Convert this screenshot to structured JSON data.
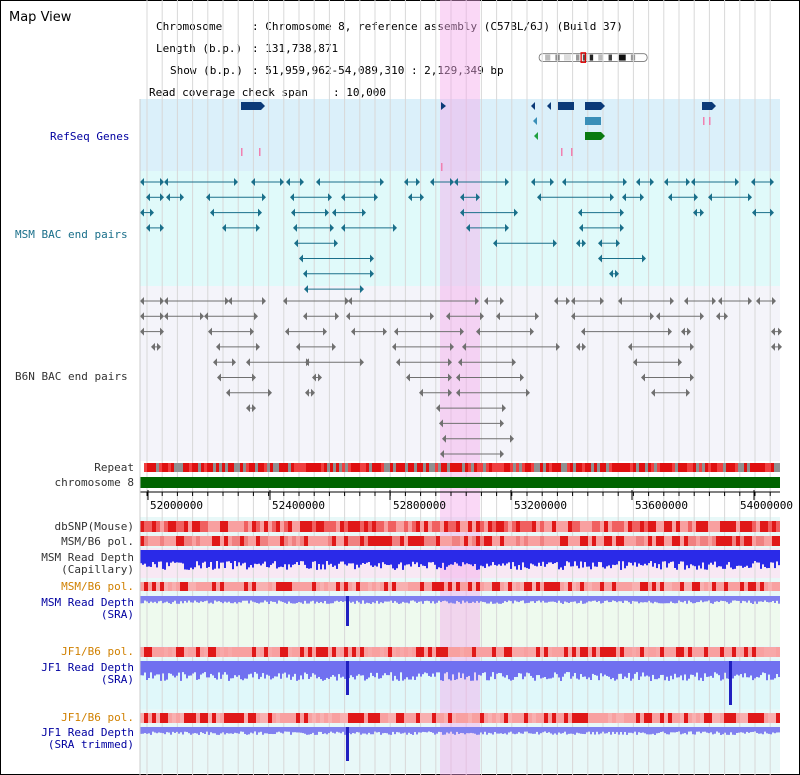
{
  "app": {
    "title": "Map View"
  },
  "header": {
    "chromosome_label": "Chromosome",
    "chromosome_value": ": Chromosome 8, reference assembly (C57BL/6J) (Build 37)",
    "length_label": "Length (b.p.)",
    "length_value": ": 131,738,871",
    "show_label": "Show (b.p.)",
    "show_value": ": 51,959,962-54,089,310 : 2,129,349 bp",
    "coverage_label": "Read coverage check span",
    "coverage_value": ": 10,000"
  },
  "tracks": {
    "refseq": "RefSeq Genes",
    "msm_bac": "MSM BAC end pairs",
    "b6n_bac": "B6N BAC end pairs",
    "repeat": "Repeat",
    "chromosome": "chromosome 8",
    "dbsnp": "dbSNP(Mouse)",
    "msm_b6_pol_1": "MSM/B6 pol.",
    "msm_depth_cap_1": "MSM Read Depth",
    "msm_depth_cap_2": "(Capillary)",
    "msm_b6_pol_2": "MSM/B6 pol.",
    "msm_depth_sra_1": "MSM Read Depth",
    "msm_depth_sra_2": "(SRA)",
    "jf1_b6_pol_1": "JF1/B6 pol.",
    "jf1_depth_sra_1": "JF1 Read Depth",
    "jf1_depth_sra_2": "(SRA)",
    "jf1_b6_pol_2": "JF1/B6 pol.",
    "jf1_depth_trim_1": "JF1 Read Depth",
    "jf1_depth_trim_2": "(SRA trimmed)"
  },
  "axis": {
    "ticks": [
      "52000000",
      "52400000",
      "52800000",
      "53200000",
      "53600000",
      "54000000"
    ]
  },
  "colors": {
    "refseq_bg": "#dbf0fa",
    "msm_bg": "#e0fafa",
    "b6n_bg": "#f4f4fa",
    "highlight": "#f5d0f0",
    "bac_msm": "#1a6f8a",
    "bac_b6n": "#707070",
    "chromosome_bar": "#006400",
    "depth_blue": "#2020e0",
    "depth_light": "#8080f0"
  }
}
